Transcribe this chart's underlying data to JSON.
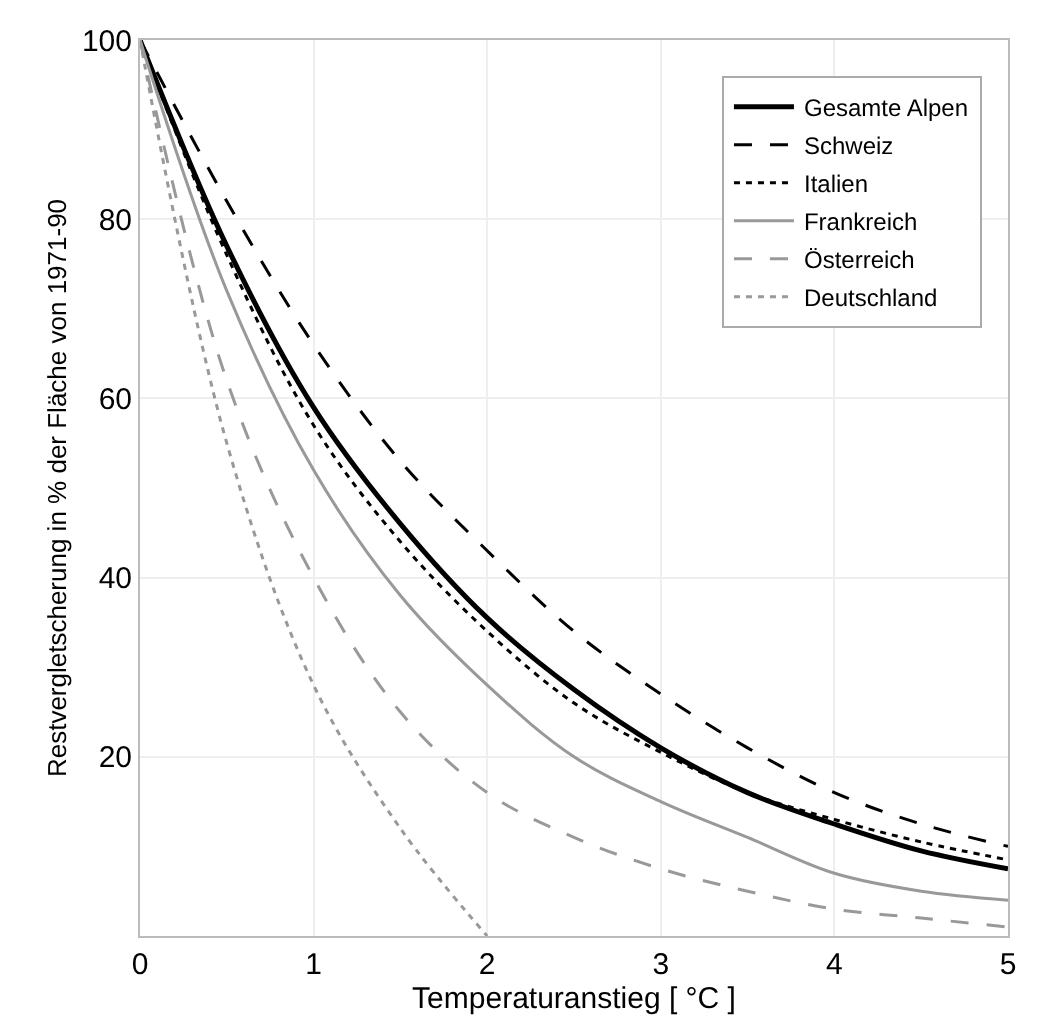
{
  "chart_data": {
    "type": "line",
    "xlabel": "Temperaturanstieg [ °C ]",
    "ylabel": "Restvergletscherung in % der Fläche von 1971-90",
    "x": [
      0,
      0.5,
      1,
      1.5,
      2,
      2.5,
      3,
      3.5,
      4,
      4.5,
      5
    ],
    "xlim": [
      0,
      5
    ],
    "xticks": [
      0,
      1,
      2,
      3,
      4,
      5
    ],
    "ylim": [
      0,
      100
    ],
    "yticks": [
      20,
      40,
      60,
      80,
      100
    ],
    "grid": true,
    "legend": "top right",
    "marker": "none",
    "series": [
      {
        "name": "Gesamte Alpen",
        "color": "#000000",
        "line_style": "solid",
        "values": [
          100,
          77,
          59,
          46,
          35.5,
          27.5,
          21,
          16,
          12.5,
          9.5,
          7.5
        ]
      },
      {
        "name": "Schweiz",
        "color": "#000000",
        "line_style": "dashed",
        "values": [
          100,
          82,
          66,
          53,
          43,
          34,
          27,
          21,
          16,
          12.5,
          10
        ]
      },
      {
        "name": "Italien",
        "color": "#000000",
        "line_style": "dotted",
        "values": [
          100,
          76,
          57,
          44,
          34,
          26,
          20.5,
          16,
          13,
          10.5,
          8.5
        ]
      },
      {
        "name": "Frankreich",
        "color": "#999999",
        "line_style": "solid",
        "values": [
          100,
          72,
          52,
          38,
          28,
          20,
          15,
          11,
          7,
          5,
          4
        ]
      },
      {
        "name": "Österreich",
        "color": "#999999",
        "line_style": "dashed",
        "values": [
          100,
          62,
          40,
          25,
          16,
          11,
          7.5,
          5,
          3,
          2,
          1
        ]
      },
      {
        "name": "Deutschland",
        "color": "#999999",
        "line_style": "dotted",
        "x": [
          0,
          0.5,
          1,
          1.5,
          2
        ],
        "values": [
          100,
          55,
          28,
          12,
          0
        ]
      }
    ]
  }
}
